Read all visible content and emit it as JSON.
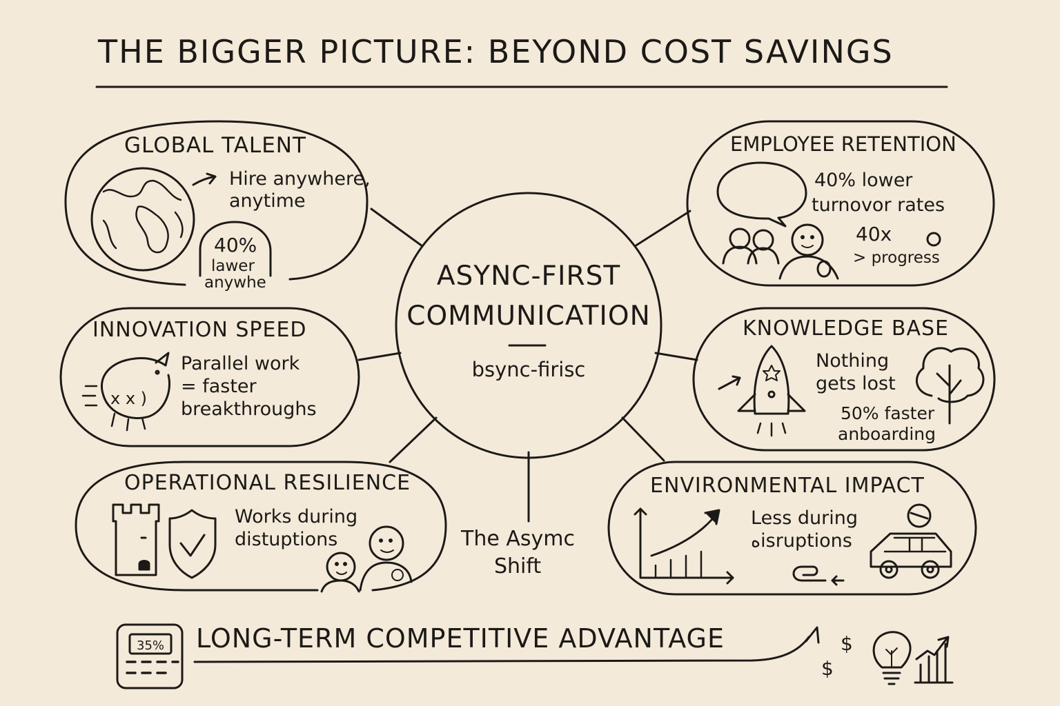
{
  "title": "THE BIGGER PICTURE: BEYOND COST SAVINGS",
  "center": {
    "line1": "ASYNC-FIRST",
    "line2": "COMMUNICATION",
    "subtitle": "bsync-firisc"
  },
  "shift_label": {
    "line1": "The Asymc",
    "line2": "Shift"
  },
  "nodes": {
    "global_talent": {
      "heading": "GLOBAL TALENT",
      "text1": "Hire anywhere,",
      "text2": "anytime",
      "badge1": "40%",
      "badge2": "lawer",
      "badge3": "anywhe"
    },
    "employee_retention": {
      "heading": "EMPLOYEE RETENTION",
      "text1": "40% lower",
      "text2": "turnovor rates",
      "stat1": "40x",
      "stat2": "> progress"
    },
    "innovation_speed": {
      "heading": "INNOVATION SPEED",
      "text1": "Parallel work",
      "text2": "= faster",
      "text3": "breakthroughs"
    },
    "knowledge_base": {
      "heading": "KNOWLEDGE BASE",
      "text1": "Nothing",
      "text2": "gets lost",
      "text3": "50% faster",
      "text4": "anboarding"
    },
    "operational_resilience": {
      "heading": "OPERATIONAL RESILIENCE",
      "text1": "Works during",
      "text2": "distuptions"
    },
    "environmental_impact": {
      "heading": "ENVIRONMENTAL IMPACT",
      "text1": "Less during",
      "text2": "هisruptions"
    }
  },
  "footer": {
    "label": "LONG-TERM COMPETITIVE ADVANTAGE",
    "calculator_display": "35%",
    "dollar1": "$",
    "dollar2": "$"
  },
  "colors": {
    "background": "#f4ead9",
    "ink": "#1c1a17"
  }
}
